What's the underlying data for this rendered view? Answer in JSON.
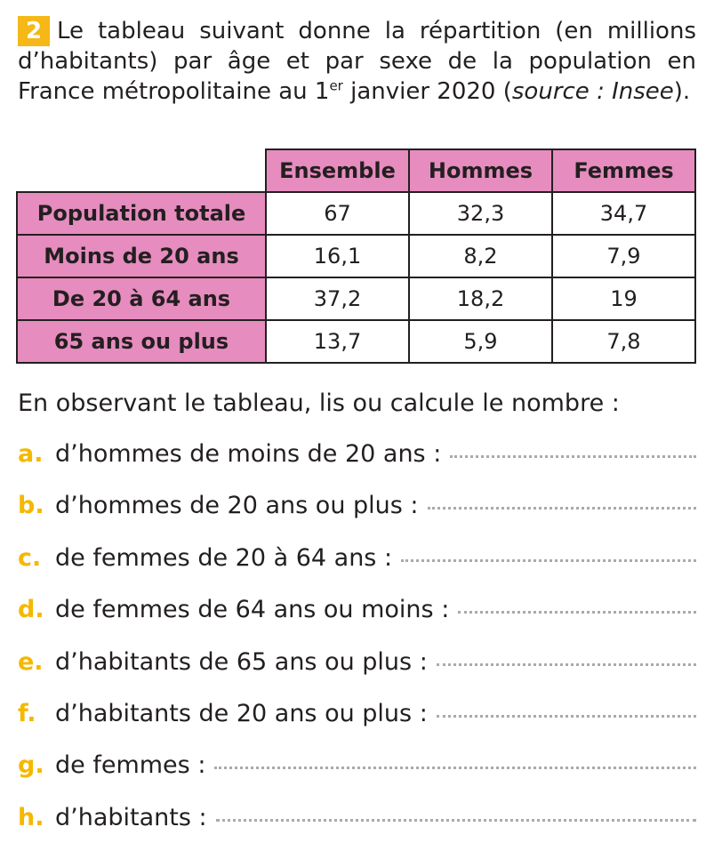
{
  "exercise": {
    "number": "2",
    "intro": {
      "text_before": "Le tableau suivant donne la répartition (en millions d’habitants) par âge et par sexe de la population en France métropolitaine au 1",
      "superscript": "er",
      "text_middle": " janvier 2020 (",
      "source": "source : Insee",
      "text_after": ")."
    },
    "table": {
      "header": [
        "Ensemble",
        "Hommes",
        "Femmes"
      ],
      "rows": [
        {
          "label": "Population totale",
          "cells": [
            "67",
            "32,3",
            "34,7"
          ]
        },
        {
          "label": "Moins de 20 ans",
          "cells": [
            "16,1",
            "8,2",
            "7,9"
          ]
        },
        {
          "label": "De 20 à 64 ans",
          "cells": [
            "37,2",
            "18,2",
            "19"
          ]
        },
        {
          "label": "65 ans ou plus",
          "cells": [
            "13,7",
            "5,9",
            "7,8"
          ]
        }
      ]
    },
    "prompt": "En observant le tableau, lis ou calcule le nombre :",
    "questions": [
      {
        "letter": "a.",
        "text": "d’hommes de moins de 20 ans :"
      },
      {
        "letter": "b.",
        "text": "d’hommes de 20 ans ou plus :"
      },
      {
        "letter": "c.",
        "text": "de femmes de 20 à 64 ans :"
      },
      {
        "letter": "d.",
        "text": "de femmes de 64 ans ou moins :"
      },
      {
        "letter": "e.",
        "text": "d’habitants de 65 ans ou plus :"
      },
      {
        "letter": "f.",
        "text": "d’habitants de 20 ans ou plus :"
      },
      {
        "letter": "g.",
        "text": "de femmes :"
      },
      {
        "letter": "h.",
        "text": "d’habitants :"
      }
    ]
  }
}
